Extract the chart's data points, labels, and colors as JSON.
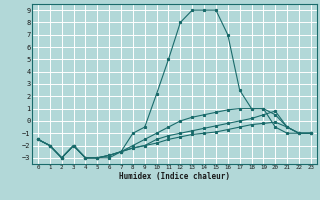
{
  "xlabel": "Humidex (Indice chaleur)",
  "background_color": "#b2d8d8",
  "grid_color": "#ffffff",
  "line_color": "#1a6b6b",
  "xlim": [
    -0.5,
    23.5
  ],
  "ylim": [
    -3.5,
    9.5
  ],
  "yticks": [
    -3,
    -2,
    -1,
    0,
    1,
    2,
    3,
    4,
    5,
    6,
    7,
    8,
    9
  ],
  "xticks": [
    0,
    1,
    2,
    3,
    4,
    5,
    6,
    7,
    8,
    9,
    10,
    11,
    12,
    13,
    14,
    15,
    16,
    17,
    18,
    19,
    20,
    21,
    22,
    23
  ],
  "line1_x": [
    0,
    1,
    2,
    3,
    4,
    5,
    6,
    7,
    8,
    9,
    10,
    11,
    12,
    13,
    14,
    15,
    16,
    17,
    18,
    19,
    20,
    21,
    22,
    23
  ],
  "line1_y": [
    -1.5,
    -2,
    -3,
    -2,
    -3,
    -3,
    -3,
    -2.5,
    -1,
    -0.5,
    2.2,
    5,
    8,
    9,
    9,
    9,
    7,
    2.5,
    1,
    1,
    -0.5,
    -1,
    -1,
    -1
  ],
  "line2_x": [
    0,
    1,
    2,
    3,
    4,
    5,
    6,
    7,
    8,
    9,
    10,
    11,
    12,
    13,
    14,
    15,
    16,
    17,
    18,
    19,
    20,
    21,
    22,
    23
  ],
  "line2_y": [
    -1.5,
    -2,
    -3,
    -2,
    -3,
    -3,
    -2.8,
    -2.5,
    -2.2,
    -2,
    -1.8,
    -1.5,
    -1.3,
    -1.1,
    -1,
    -0.9,
    -0.7,
    -0.5,
    -0.3,
    -0.2,
    -0.1,
    -0.5,
    -1,
    -1
  ],
  "line3_x": [
    0,
    1,
    2,
    3,
    4,
    5,
    6,
    7,
    8,
    9,
    10,
    11,
    12,
    13,
    14,
    15,
    16,
    17,
    18,
    19,
    20,
    21,
    22,
    23
  ],
  "line3_y": [
    -1.5,
    -2,
    -3,
    -2,
    -3,
    -3,
    -2.8,
    -2.5,
    -2.2,
    -2,
    -1.5,
    -1.2,
    -1,
    -0.8,
    -0.6,
    -0.4,
    -0.2,
    0,
    0.2,
    0.5,
    0.8,
    -0.5,
    -1,
    -1
  ],
  "line4_x": [
    0,
    1,
    2,
    3,
    4,
    5,
    6,
    7,
    8,
    9,
    10,
    11,
    12,
    13,
    14,
    15,
    16,
    17,
    18,
    19,
    20,
    21,
    22,
    23
  ],
  "line4_y": [
    -1.5,
    -2,
    -3,
    -2,
    -3,
    -3,
    -2.8,
    -2.5,
    -2,
    -1.5,
    -1,
    -0.5,
    0,
    0.3,
    0.5,
    0.7,
    0.9,
    1,
    1,
    1,
    0.5,
    -0.5,
    -1,
    -1
  ],
  "spine_color": "#1a6b6b",
  "tick_label_color": "#1a1a1a",
  "xlabel_fontsize": 5.5,
  "ytick_fontsize": 5.0,
  "xtick_fontsize": 4.2,
  "linewidth": 0.8,
  "markersize": 2.0
}
